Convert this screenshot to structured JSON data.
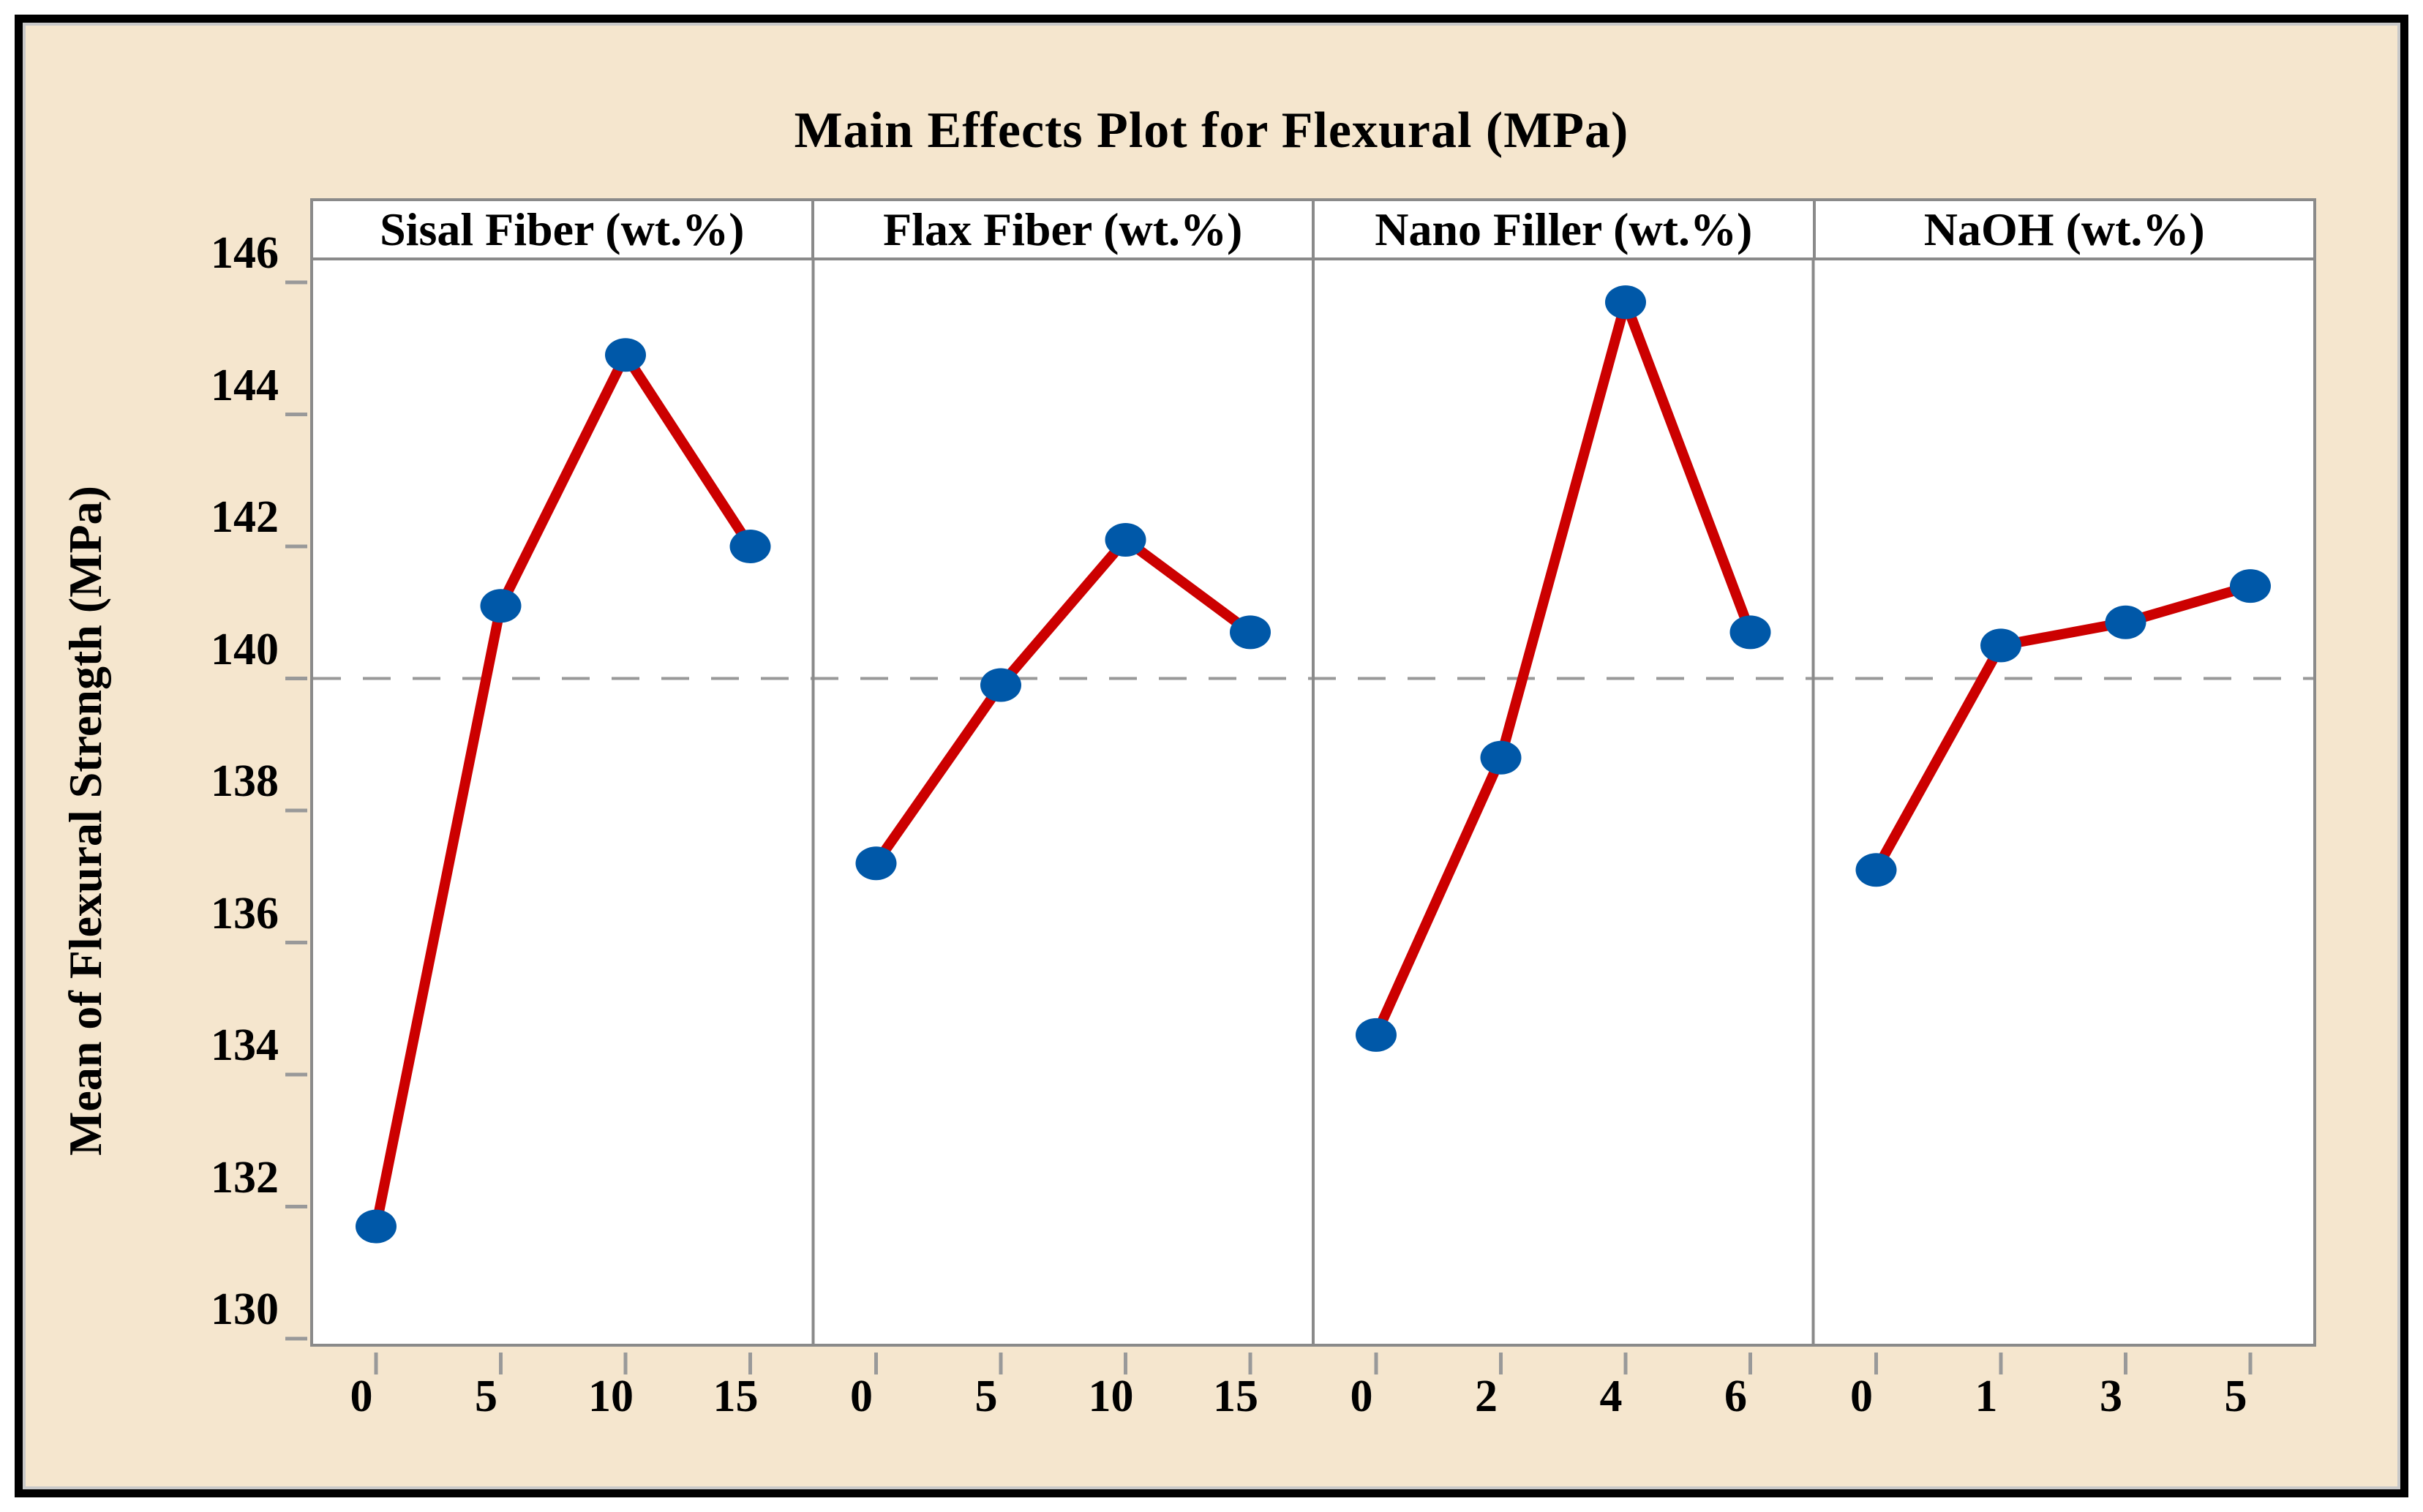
{
  "title": "Main Effects Plot for Flexural (MPa)",
  "y_axis_title": "Mean of Flexural Strength (MPa)",
  "colors": {
    "background": "#F5E6CE",
    "panel_background": "#FFFFFF",
    "outer_border": "#000000",
    "inner_frame": "#C9C9C9",
    "panel_border": "#8A8A8A",
    "line": "#CC0000",
    "marker": "#0058A8",
    "reference_dash": "#999999",
    "tick": "#999999",
    "text": "#000000"
  },
  "chart_data": {
    "type": "line",
    "title": "Main Effects Plot for Flexural (MPa)",
    "ylabel": "Mean of Flexural Strength (MPa)",
    "xlabel": "",
    "ylim": [
      130,
      146
    ],
    "yticks": [
      146,
      144,
      142,
      140,
      138,
      136,
      134,
      132,
      130
    ],
    "reference_line_y": 140,
    "grid": "off",
    "legend": "none",
    "panels": [
      {
        "name": "Sisal Fiber (wt.%)",
        "categories": [
          "0",
          "5",
          "10",
          "15"
        ],
        "values": [
          131.7,
          141.1,
          144.9,
          142.0
        ]
      },
      {
        "name": "Flax Fiber (wt.%)",
        "categories": [
          "0",
          "5",
          "10",
          "15"
        ],
        "values": [
          137.2,
          139.9,
          142.1,
          140.7
        ]
      },
      {
        "name": "Nano Filler (wt.%)",
        "categories": [
          "0",
          "2",
          "4",
          "6"
        ],
        "values": [
          134.6,
          138.8,
          145.7,
          140.7
        ]
      },
      {
        "name": "NaOH (wt.%)",
        "categories": [
          "0",
          "1",
          "3",
          "5"
        ],
        "values": [
          137.1,
          140.5,
          140.85,
          141.4
        ]
      }
    ]
  }
}
